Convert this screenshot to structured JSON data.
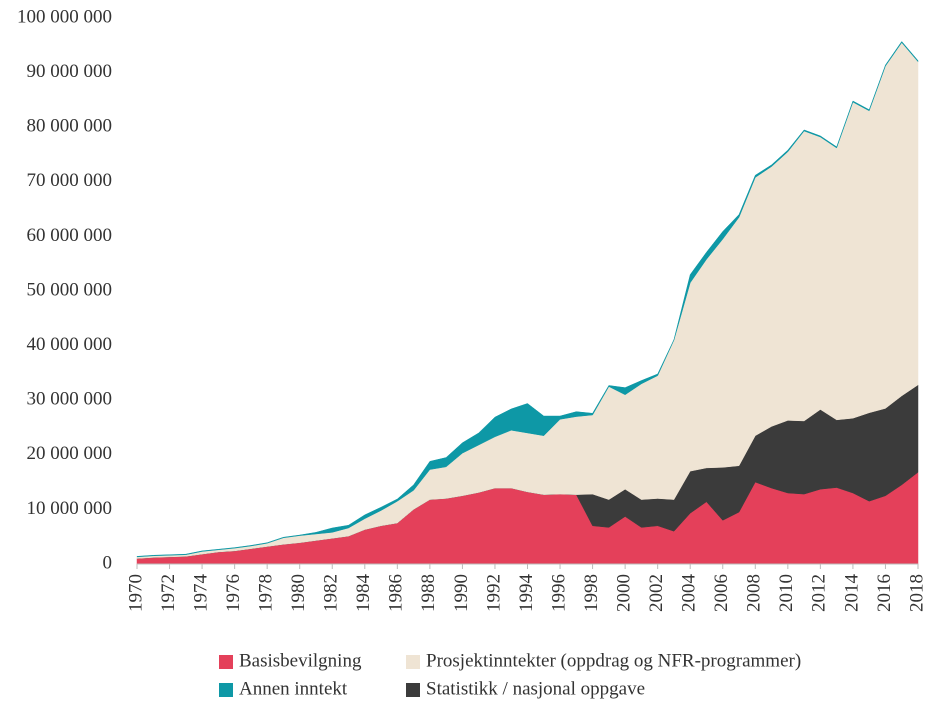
{
  "chart_data": {
    "type": "stacked_area",
    "x": [
      1970,
      1971,
      1972,
      1973,
      1974,
      1975,
      1976,
      1977,
      1978,
      1979,
      1980,
      1981,
      1982,
      1983,
      1984,
      1985,
      1986,
      1987,
      1988,
      1989,
      1990,
      1991,
      1992,
      1993,
      1994,
      1995,
      1996,
      1997,
      1998,
      1999,
      2000,
      2001,
      2002,
      2003,
      2004,
      2005,
      2006,
      2007,
      2008,
      2009,
      2010,
      2011,
      2012,
      2013,
      2014,
      2015,
      2016,
      2017,
      2018
    ],
    "xlim": [
      1970,
      2018
    ],
    "xticks": [
      1970,
      1972,
      1974,
      1976,
      1978,
      1980,
      1982,
      1984,
      1986,
      1988,
      1990,
      1992,
      1994,
      1996,
      1998,
      2000,
      2002,
      2004,
      2006,
      2008,
      2010,
      2012,
      2014,
      2016,
      2018
    ],
    "ylim": [
      0,
      100000000
    ],
    "yticks": [
      0,
      {
        "value": 10000000,
        "label": "10 000 000"
      },
      {
        "value": 20000000,
        "label": "20 000 000"
      },
      {
        "value": 30000000,
        "label": "30 000 000"
      },
      {
        "value": 40000000,
        "label": "40 000 000"
      },
      {
        "value": 50000000,
        "label": "50 000 000"
      },
      {
        "value": 60000000,
        "label": "60 000 000"
      },
      {
        "value": 70000000,
        "label": "70 000 000"
      },
      {
        "value": 80000000,
        "label": "80 000 000"
      },
      {
        "value": 90000000,
        "label": "90 000 000"
      },
      {
        "value": 100000000,
        "label": "100 000 000"
      }
    ],
    "grid": false,
    "legend": "bottom",
    "series": [
      {
        "name": "Basisbevilgning",
        "color": "#e4405a",
        "values": [
          1000000,
          1200000,
          1300000,
          1400000,
          1800000,
          2200000,
          2400000,
          2800000,
          3200000,
          3600000,
          3900000,
          4300000,
          4700000,
          5100000,
          6300000,
          7000000,
          7500000,
          10000000,
          11800000,
          12000000,
          12500000,
          13100000,
          13900000,
          13900000,
          13200000,
          12700000,
          12800000,
          12700000,
          7000000,
          6700000,
          8700000,
          6700000,
          7000000,
          6000000,
          9300000,
          11400000,
          8000000,
          9500000,
          15000000,
          13900000,
          13000000,
          12800000,
          13700000,
          14000000,
          13000000,
          11500000,
          12500000,
          14500000,
          16800000
        ]
      },
      {
        "name": "Statistikk / nasjonal oppgave",
        "color": "#3b3b3b",
        "values": [
          0,
          0,
          0,
          0,
          0,
          0,
          0,
          0,
          0,
          0,
          0,
          0,
          0,
          0,
          0,
          0,
          0,
          0,
          0,
          0,
          0,
          0,
          0,
          0,
          0,
          0,
          0,
          0,
          5800000,
          5100000,
          5000000,
          5100000,
          5000000,
          5800000,
          7700000,
          6200000,
          9700000,
          8500000,
          8500000,
          11300000,
          13300000,
          13400000,
          14600000,
          12400000,
          13700000,
          16200000,
          16000000,
          16300000,
          16000000
        ]
      },
      {
        "name": "Prosjektinntekter (oppdrag og NFR-programmer)",
        "color": "#efe4d4",
        "values": [
          300000,
          300000,
          300000,
          300000,
          500000,
          400000,
          500000,
          500000,
          600000,
          1200000,
          1300000,
          1200000,
          1100000,
          1500000,
          2000000,
          2800000,
          4000000,
          3500000,
          5500000,
          5800000,
          7800000,
          8700000,
          9400000,
          10600000,
          10800000,
          10800000,
          13700000,
          14300000,
          14500000,
          20700000,
          17300000,
          21200000,
          22500000,
          29200000,
          34500000,
          38200000,
          41800000,
          45500000,
          47300000,
          47600000,
          49200000,
          53100000,
          49900000,
          49800000,
          57900000,
          55300000,
          62700000,
          64700000,
          59200000
        ]
      },
      {
        "name": "Annen inntekt",
        "color": "#0e98a6",
        "values": [
          100000,
          100000,
          100000,
          100000,
          100000,
          100000,
          100000,
          100000,
          100000,
          100000,
          100000,
          300000,
          800000,
          500000,
          700000,
          600000,
          400000,
          1000000,
          1500000,
          1700000,
          1900000,
          2200000,
          3600000,
          3900000,
          5400000,
          3600000,
          600000,
          900000,
          300000,
          200000,
          1300000,
          600000,
          300000,
          100000,
          1500000,
          1300000,
          1400000,
          500000,
          400000,
          300000,
          300000,
          200000,
          200000,
          200000,
          200000,
          200000,
          200000,
          200000,
          200000
        ]
      }
    ]
  }
}
